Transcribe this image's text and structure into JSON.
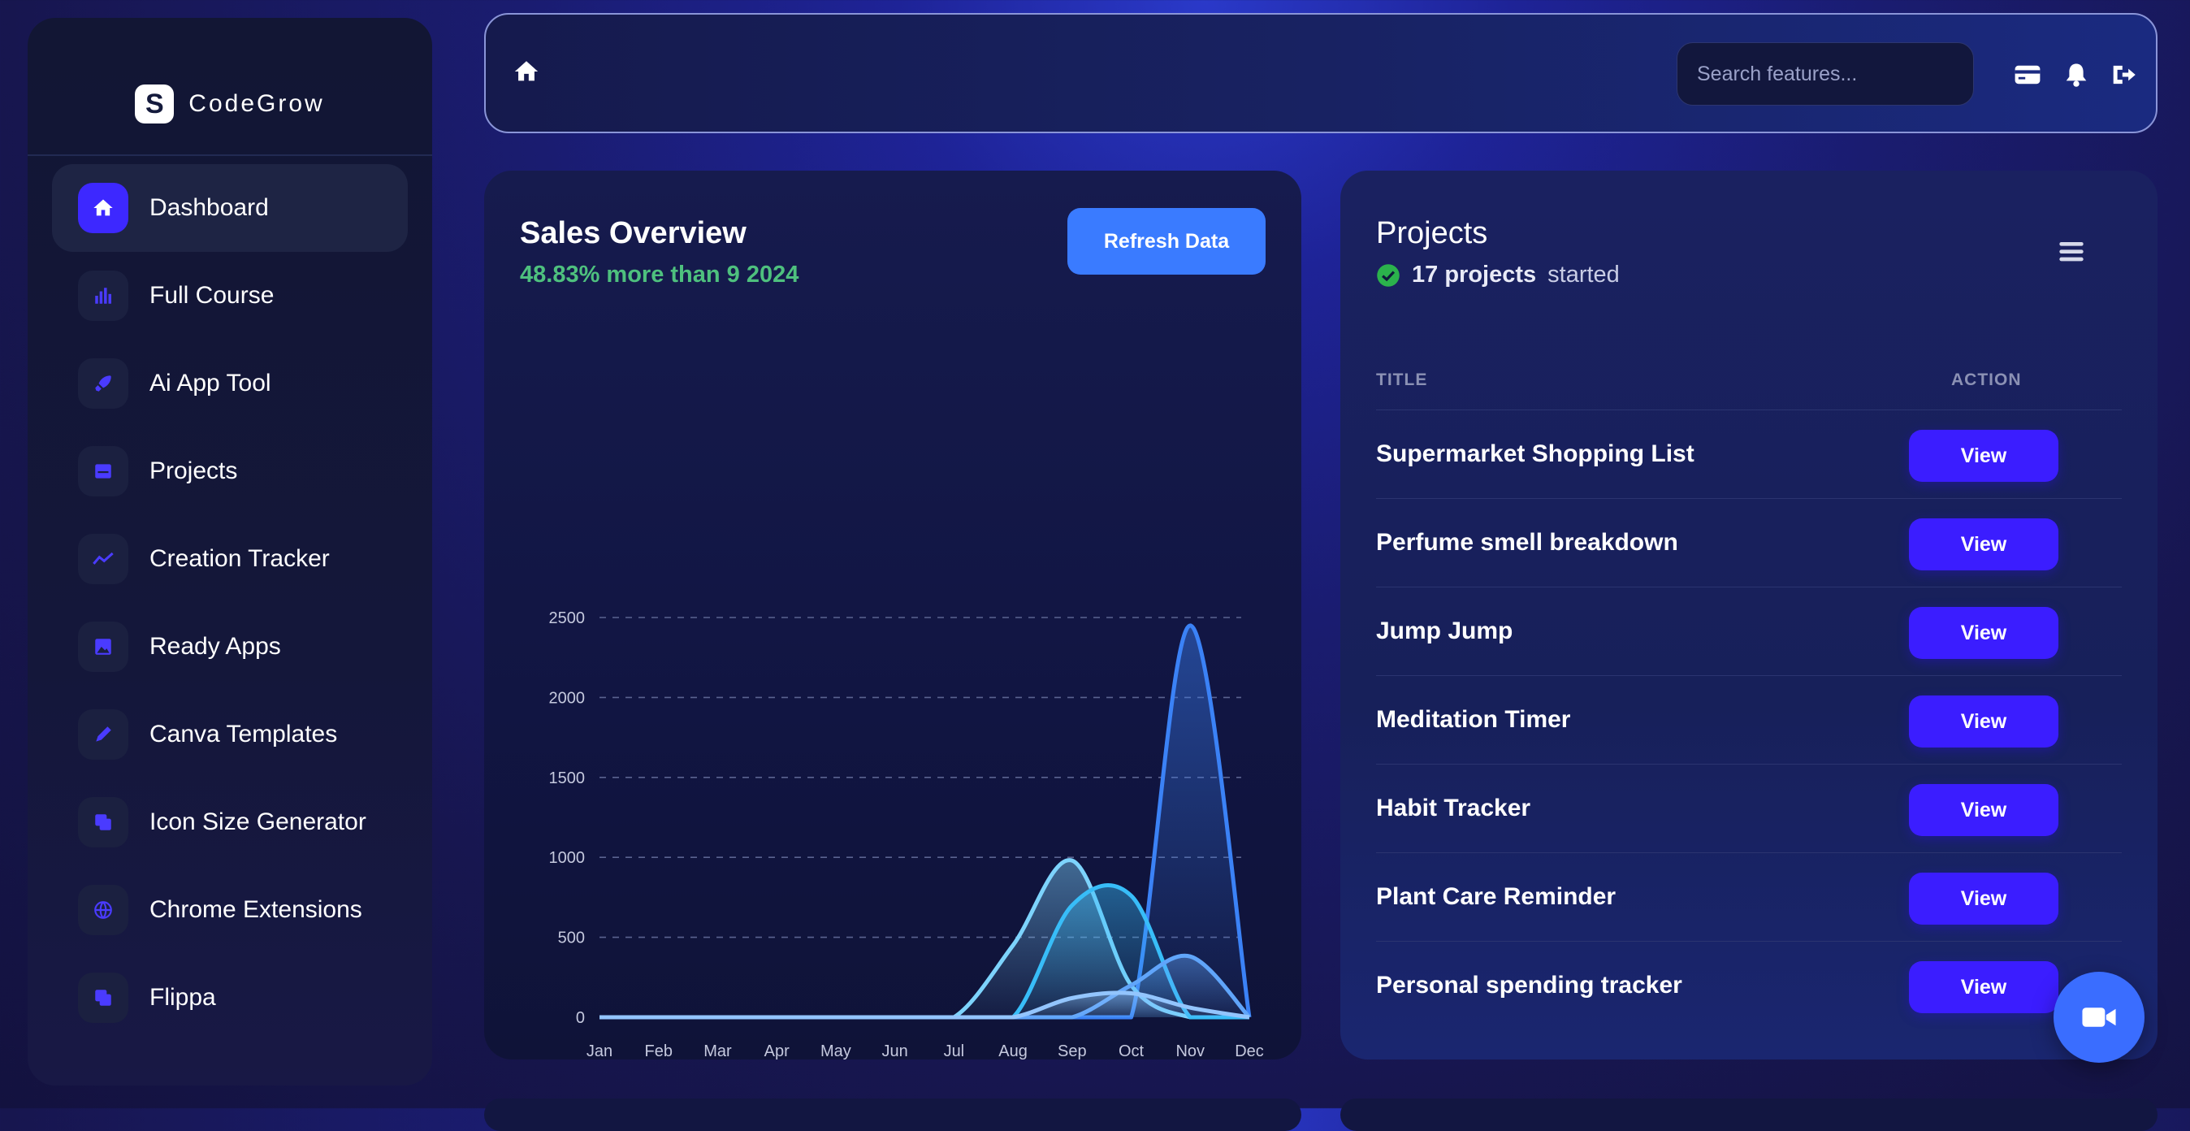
{
  "brand": {
    "name": "CodeGrow",
    "mark": "S"
  },
  "sidebar": {
    "items": [
      {
        "label": "Dashboard",
        "icon": "home-icon",
        "active": true
      },
      {
        "label": "Full Course",
        "icon": "bar-chart-icon"
      },
      {
        "label": "Ai App Tool",
        "icon": "rocket-icon"
      },
      {
        "label": "Projects",
        "icon": "inbox-icon"
      },
      {
        "label": "Creation Tracker",
        "icon": "trend-line-icon"
      },
      {
        "label": "Ready Apps",
        "icon": "image-icon"
      },
      {
        "label": "Canva Templates",
        "icon": "pen-icon"
      },
      {
        "label": "Icon Size Generator",
        "icon": "layers-icon"
      },
      {
        "label": "Chrome Extensions",
        "icon": "globe-icon"
      },
      {
        "label": "Flippa",
        "icon": "layers-icon"
      }
    ]
  },
  "topbar": {
    "search_placeholder": "Search features..."
  },
  "sales": {
    "title": "Sales Overview",
    "subtitle": "48.83% more than 9 2024",
    "refresh_label": "Refresh Data"
  },
  "projects": {
    "title": "Projects",
    "count_bold": "17 projects",
    "count_rest": "started",
    "col_title": "TITLE",
    "col_action": "ACTION",
    "view_label": "View",
    "rows": [
      "Supermarket Shopping List",
      "Perfume smell breakdown",
      "Jump Jump",
      "Meditation Timer",
      "Habit Tracker",
      "Plant Care Reminder",
      "Personal spending tracker"
    ]
  },
  "colors": {
    "accent": "#3b1dff",
    "positive": "#4ec07e",
    "refresh": "#3a7bff"
  },
  "chart_data": {
    "type": "area",
    "categories": [
      "Jan",
      "Feb",
      "Mar",
      "Apr",
      "May",
      "Jun",
      "Jul",
      "Aug",
      "Sep",
      "Oct",
      "Nov",
      "Dec"
    ],
    "yticks": [
      0,
      500,
      1000,
      1500,
      2000,
      2500
    ],
    "ylim": [
      0,
      2500
    ],
    "grid": true,
    "series": [
      {
        "color": "#3b82f6",
        "values": [
          0,
          0,
          0,
          0,
          0,
          0,
          0,
          0,
          0,
          0,
          2450,
          0
        ]
      },
      {
        "color": "#7dd3fc",
        "values": [
          0,
          0,
          0,
          0,
          0,
          0,
          0,
          450,
          980,
          200,
          0,
          0
        ]
      },
      {
        "color": "#38bdf8",
        "values": [
          0,
          0,
          0,
          0,
          0,
          0,
          0,
          0,
          700,
          760,
          0,
          0
        ]
      },
      {
        "color": "#60a5fa",
        "values": [
          0,
          0,
          0,
          0,
          0,
          0,
          0,
          0,
          0,
          200,
          380,
          0
        ]
      },
      {
        "color": "#93c5fd",
        "values": [
          0,
          0,
          0,
          0,
          0,
          0,
          0,
          0,
          120,
          150,
          60,
          0
        ]
      }
    ]
  }
}
